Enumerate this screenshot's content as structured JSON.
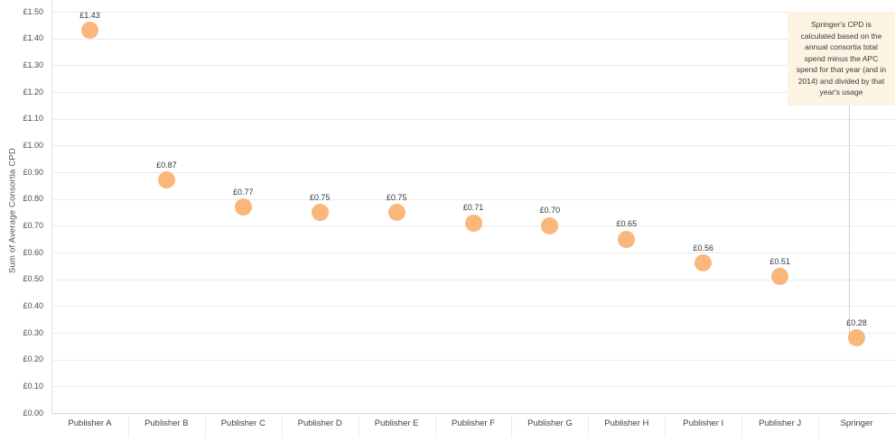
{
  "chart_data": {
    "type": "scatter",
    "title": "",
    "categories": [
      "Publisher A",
      "Publisher B",
      "Publisher C",
      "Publisher D",
      "Publisher E",
      "Publisher F",
      "Publisher G",
      "Publisher H",
      "Publisher I",
      "Publisher J",
      "Springer"
    ],
    "values": [
      1.43,
      0.87,
      0.77,
      0.75,
      0.75,
      0.71,
      0.7,
      0.65,
      0.56,
      0.51,
      0.28
    ],
    "point_labels": [
      "£1.43",
      "£0.87",
      "£0.77",
      "£0.75",
      "£0.75",
      "£0.71",
      "£0.70",
      "£0.65",
      "£0.56",
      "£0.51",
      "£0.28"
    ],
    "xlabel": "",
    "ylabel": "Sum of Average Consortia CPD",
    "ylim": [
      0,
      1.5
    ],
    "ytick_labels": [
      "£0.00",
      "£0.10",
      "£0.20",
      "£0.30",
      "£0.40",
      "£0.50",
      "£0.60",
      "£0.70",
      "£0.80",
      "£0.90",
      "£1.00",
      "£1.10",
      "£1.20",
      "£1.30",
      "£1.40",
      "£1.50"
    ],
    "grid": "horizontal",
    "legend": "none",
    "marker_color": "#F9B77C",
    "annotation": {
      "text": "Springer's CPD is calculated based on the annual consortia total spend minus the APC spend for that year (and in 2014) and divided by that year's usage",
      "target_category": "Springer",
      "background_color": "#FCF3E2"
    }
  }
}
